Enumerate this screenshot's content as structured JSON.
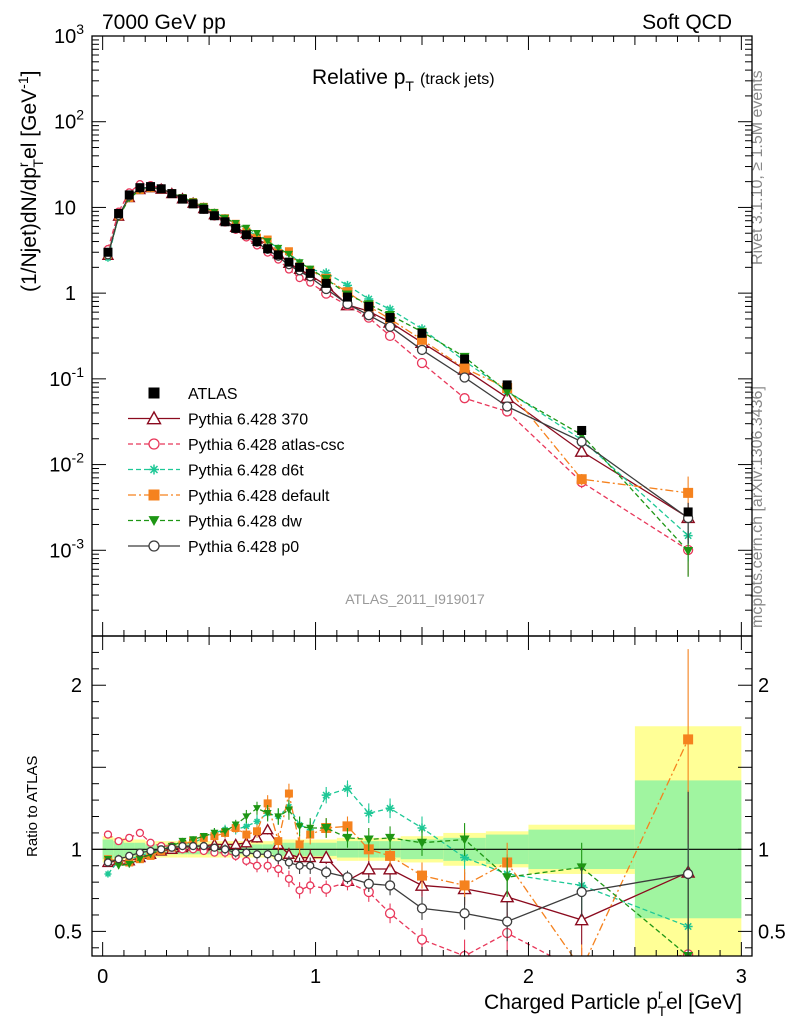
{
  "header": {
    "energy": "7000 GeV pp",
    "category": "Soft QCD",
    "title_main": "Relative p",
    "title_sub": "T",
    "title_tail": "(track jets)",
    "analysis_id": "ATLAS_2011_I919017",
    "side_rivet": "Rivet 3.1.10, ≥ 1.5M events",
    "side_site": "mcplots.cern.ch [arXiv:1306.3436]"
  },
  "colors": {
    "ATLAS": "#000000",
    "p370": "#8b0a1e",
    "atlascsc": "#e8375a",
    "d6t": "#1ec896",
    "default": "#f5821e",
    "dw": "#1e9614",
    "p0": "#3c3c3c",
    "band_inner": "#a0f5a0",
    "band_outer": "#ffff96"
  },
  "chart_data": {
    "type": "scatter",
    "xlabel_main": "Charged Particle p",
    "xlabel_sub": "T",
    "xlabel_sup": "r",
    "xlabel_tail": "el [GeV]",
    "ylabel_text": "(1/Njet)dN/dp",
    "ylabel_sup": "r",
    "ylabel_sub": "T",
    "ylabel_tail": "el [GeV",
    "ylabel_unit_sup": "-1",
    "ylabel_close": "]",
    "ratio_ylabel": "Ratio to ATLAS",
    "log_y_main": true,
    "xlim": [
      -0.05,
      3.05
    ],
    "ylim_main": [
      0.0001,
      1000
    ],
    "ylim_ratio": [
      0.35,
      2.3
    ],
    "x_ticks": [
      "0",
      "1",
      "2",
      "3"
    ],
    "y_ticks_main": [
      {
        "base": "10",
        "exp": "-3",
        "v": 0.001
      },
      {
        "base": "10",
        "exp": "-2",
        "v": 0.01
      },
      {
        "base": "10",
        "exp": "-1",
        "v": 0.1
      },
      {
        "base": "1",
        "exp": "",
        "v": 1
      },
      {
        "base": "10",
        "exp": "",
        "v": 10
      },
      {
        "base": "10",
        "exp": "2",
        "v": 100
      },
      {
        "base": "10",
        "exp": "3",
        "v": 1000
      }
    ],
    "y_ticks_ratio": [
      {
        "label": "0.5",
        "v": 0.5
      },
      {
        "label": "1",
        "v": 1
      },
      {
        "label": "2",
        "v": 2
      }
    ],
    "x": [
      0.025,
      0.075,
      0.125,
      0.175,
      0.225,
      0.275,
      0.325,
      0.375,
      0.425,
      0.475,
      0.525,
      0.575,
      0.625,
      0.675,
      0.725,
      0.775,
      0.825,
      0.875,
      0.925,
      0.975,
      1.05,
      1.15,
      1.25,
      1.35,
      1.5,
      1.7,
      1.9,
      2.25,
      2.75
    ],
    "bins": [
      0,
      0.05,
      0.1,
      0.15,
      0.2,
      0.25,
      0.3,
      0.35,
      0.4,
      0.45,
      0.5,
      0.55,
      0.6,
      0.65,
      0.7,
      0.75,
      0.8,
      0.85,
      0.9,
      0.95,
      1.0,
      1.1,
      1.2,
      1.3,
      1.4,
      1.6,
      1.8,
      2.0,
      2.5,
      3.0
    ],
    "atlas": [
      3.0,
      8.5,
      14.0,
      17.0,
      17.5,
      16.5,
      14.5,
      12.5,
      11.0,
      9.5,
      8.0,
      6.8,
      5.7,
      4.8,
      4.0,
      3.3,
      2.8,
      2.3,
      2.0,
      1.7,
      1.3,
      0.9,
      0.7,
      0.52,
      0.34,
      0.17,
      0.085,
      0.025,
      0.0028
    ],
    "band_inner": [
      0.06,
      0.05,
      0.04,
      0.04,
      0.03,
      0.03,
      0.03,
      0.03,
      0.03,
      0.03,
      0.03,
      0.03,
      0.03,
      0.03,
      0.03,
      0.03,
      0.04,
      0.04,
      0.04,
      0.04,
      0.04,
      0.05,
      0.05,
      0.05,
      0.06,
      0.07,
      0.09,
      0.12,
      0.42
    ],
    "band_outer": [
      0.08,
      0.07,
      0.06,
      0.06,
      0.05,
      0.05,
      0.05,
      0.05,
      0.05,
      0.05,
      0.05,
      0.05,
      0.05,
      0.05,
      0.05,
      0.05,
      0.06,
      0.06,
      0.06,
      0.06,
      0.06,
      0.07,
      0.07,
      0.07,
      0.08,
      0.1,
      0.11,
      0.15,
      0.75
    ],
    "series": [
      {
        "key": "p370",
        "name": "Pythia 6.428 370",
        "marker": "triangle-open",
        "line": "solid",
        "ratio": [
          0.92,
          0.93,
          0.93,
          0.95,
          0.97,
          0.99,
          1.0,
          1.01,
          1.02,
          1.02,
          1.03,
          1.03,
          1.03,
          1.04,
          1.07,
          1.12,
          1.03,
          0.97,
          0.95,
          0.95,
          0.95,
          0.81,
          0.88,
          0.88,
          0.78,
          0.76,
          0.71,
          0.57,
          0.86
        ],
        "err": [
          0.02,
          0.02,
          0.02,
          0.02,
          0.02,
          0.02,
          0.02,
          0.02,
          0.02,
          0.02,
          0.02,
          0.03,
          0.03,
          0.03,
          0.03,
          0.03,
          0.04,
          0.04,
          0.05,
          0.05,
          0.04,
          0.04,
          0.05,
          0.06,
          0.07,
          0.1,
          0.12,
          0.15,
          0.5
        ]
      },
      {
        "key": "atlascsc",
        "name": "Pythia 6.428 atlas-csc",
        "marker": "circle-open",
        "line": "dashed",
        "ratio": [
          1.09,
          1.05,
          1.07,
          1.1,
          1.04,
          1.02,
          1.02,
          1.0,
          1.0,
          0.99,
          0.98,
          0.98,
          0.96,
          0.93,
          0.9,
          0.9,
          0.88,
          0.82,
          0.75,
          0.78,
          0.76,
          0.8,
          0.74,
          0.61,
          0.45,
          0.35,
          0.49,
          0.25,
          0.36
        ],
        "err": [
          0.02,
          0.02,
          0.02,
          0.02,
          0.02,
          0.02,
          0.02,
          0.02,
          0.02,
          0.02,
          0.02,
          0.03,
          0.03,
          0.03,
          0.04,
          0.04,
          0.05,
          0.05,
          0.05,
          0.05,
          0.05,
          0.05,
          0.06,
          0.06,
          0.07,
          0.1,
          0.12,
          0.15,
          0.5
        ]
      },
      {
        "key": "d6t",
        "name": "Pythia 6.428 d6t",
        "marker": "asterisk",
        "line": "dashed",
        "ratio": [
          0.85,
          0.93,
          0.94,
          0.96,
          0.98,
          1.0,
          1.01,
          1.03,
          1.04,
          1.07,
          1.1,
          1.12,
          1.12,
          1.14,
          1.17,
          1.22,
          1.2,
          1.26,
          1.15,
          1.12,
          1.33,
          1.37,
          1.22,
          1.25,
          1.13,
          0.95,
          0.85,
          0.78,
          0.53
        ],
        "err": [
          0.02,
          0.02,
          0.02,
          0.02,
          0.02,
          0.02,
          0.02,
          0.02,
          0.02,
          0.02,
          0.03,
          0.03,
          0.03,
          0.03,
          0.04,
          0.04,
          0.05,
          0.05,
          0.05,
          0.05,
          0.05,
          0.05,
          0.06,
          0.06,
          0.07,
          0.1,
          0.12,
          0.15,
          0.5
        ]
      },
      {
        "key": "default",
        "name": "Pythia 6.428 default",
        "marker": "square",
        "line": "dashdot",
        "ratio": [
          0.94,
          0.93,
          0.92,
          0.94,
          0.96,
          0.99,
          1.01,
          1.03,
          1.05,
          1.07,
          1.08,
          1.1,
          1.13,
          1.09,
          1.11,
          1.28,
          1.05,
          1.34,
          1.03,
          1.09,
          1.13,
          1.14,
          1.0,
          0.96,
          0.84,
          0.78,
          0.92,
          0.27,
          1.67
        ],
        "err": [
          0.02,
          0.02,
          0.02,
          0.02,
          0.02,
          0.02,
          0.02,
          0.02,
          0.02,
          0.02,
          0.03,
          0.03,
          0.03,
          0.04,
          0.04,
          0.05,
          0.05,
          0.06,
          0.06,
          0.06,
          0.06,
          0.06,
          0.07,
          0.07,
          0.08,
          0.1,
          0.12,
          0.15,
          0.55
        ]
      },
      {
        "key": "dw",
        "name": "Pythia 6.428 dw",
        "marker": "triangle-down",
        "line": "dashed",
        "ratio": [
          0.94,
          0.9,
          0.91,
          0.94,
          0.97,
          1.0,
          1.02,
          1.05,
          1.06,
          1.08,
          1.1,
          1.11,
          1.15,
          1.2,
          1.25,
          1.22,
          1.2,
          1.24,
          1.14,
          1.13,
          1.13,
          1.07,
          1.06,
          1.07,
          1.04,
          1.06,
          0.83,
          0.89,
          0.35
        ],
        "err": [
          0.02,
          0.02,
          0.02,
          0.02,
          0.02,
          0.02,
          0.02,
          0.02,
          0.02,
          0.02,
          0.03,
          0.03,
          0.03,
          0.04,
          0.04,
          0.05,
          0.05,
          0.06,
          0.06,
          0.06,
          0.06,
          0.06,
          0.07,
          0.07,
          0.08,
          0.1,
          0.12,
          0.15,
          0.5
        ]
      },
      {
        "key": "p0",
        "name": "Pythia 6.428 p0",
        "marker": "circle-open",
        "line": "solid",
        "ratio": [
          0.92,
          0.94,
          0.96,
          0.98,
          0.99,
          1.0,
          1.01,
          1.02,
          1.02,
          1.02,
          1.01,
          1.0,
          0.98,
          0.98,
          0.97,
          0.97,
          0.95,
          0.92,
          0.9,
          0.9,
          0.86,
          0.83,
          0.79,
          0.78,
          0.64,
          0.61,
          0.56,
          0.74,
          0.85
        ],
        "err": [
          0.02,
          0.02,
          0.02,
          0.02,
          0.02,
          0.02,
          0.02,
          0.02,
          0.02,
          0.02,
          0.02,
          0.03,
          0.03,
          0.03,
          0.03,
          0.03,
          0.04,
          0.04,
          0.05,
          0.05,
          0.04,
          0.04,
          0.05,
          0.06,
          0.07,
          0.1,
          0.12,
          0.15,
          0.5
        ]
      }
    ],
    "legend": [
      {
        "key": "ATLAS",
        "label": "ATLAS",
        "marker": "square",
        "line": "none"
      },
      {
        "key": "p370",
        "label": "Pythia 6.428 370",
        "marker": "triangle-open",
        "line": "solid"
      },
      {
        "key": "atlascsc",
        "label": "Pythia 6.428 atlas-csc",
        "marker": "circle-open",
        "line": "dashed"
      },
      {
        "key": "d6t",
        "label": "Pythia 6.428 d6t",
        "marker": "asterisk",
        "line": "dashed"
      },
      {
        "key": "default",
        "label": "Pythia 6.428 default",
        "marker": "square",
        "line": "dashdot"
      },
      {
        "key": "dw",
        "label": "Pythia 6.428 dw",
        "marker": "triangle-down",
        "line": "dashed"
      },
      {
        "key": "p0",
        "label": "Pythia 6.428 p0",
        "marker": "circle-open",
        "line": "solid"
      }
    ]
  }
}
